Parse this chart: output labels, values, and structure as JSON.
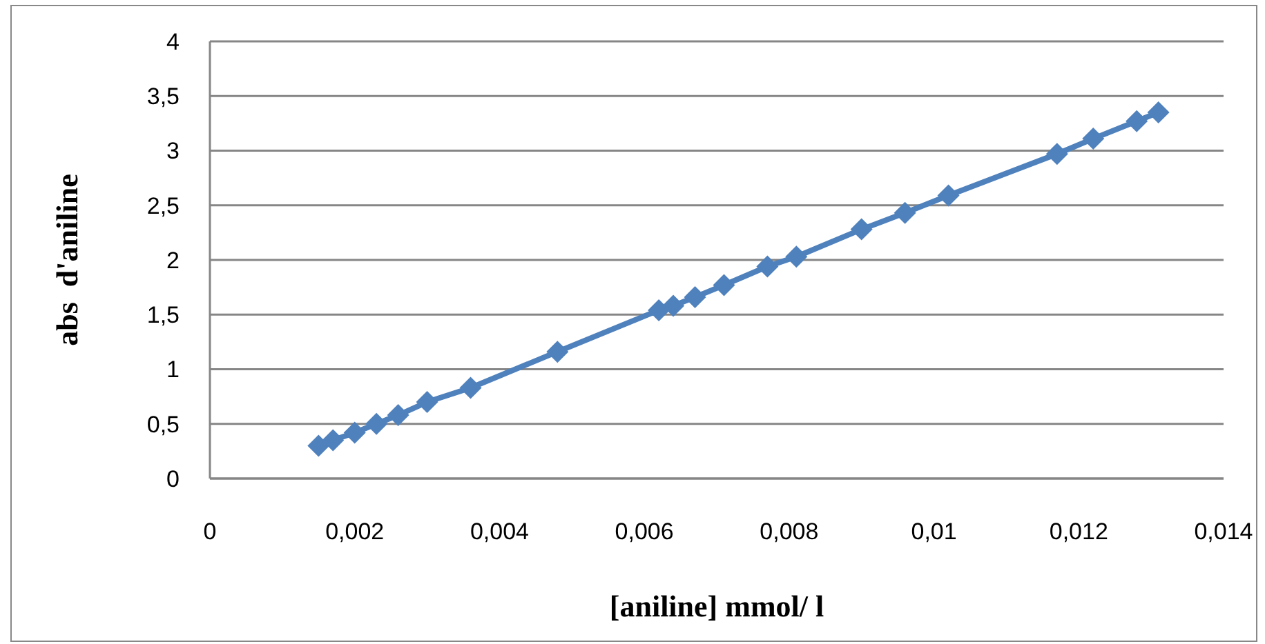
{
  "chart_data": {
    "type": "line",
    "xlabel": "[aniline] mmol/ l",
    "ylabel": "abs  d'aniline",
    "x": [
      0.0015,
      0.0017,
      0.002,
      0.0023,
      0.0026,
      0.003,
      0.0036,
      0.0048,
      0.0062,
      0.0064,
      0.0067,
      0.0071,
      0.0077,
      0.0081,
      0.009,
      0.0096,
      0.0102,
      0.0117,
      0.0122,
      0.0128,
      0.0131
    ],
    "series": [
      {
        "color": "#4f81bd",
        "values": [
          0.3,
          0.35,
          0.42,
          0.5,
          0.58,
          0.7,
          0.83,
          1.16,
          1.54,
          1.58,
          1.66,
          1.77,
          1.94,
          2.03,
          2.28,
          2.43,
          2.59,
          2.97,
          3.11,
          3.27,
          3.35
        ]
      }
    ],
    "xlim": [
      0,
      0.014
    ],
    "xticks": [
      0,
      {
        "value": 0.002,
        "label": "0,002"
      },
      {
        "value": 0.004,
        "label": "0,004"
      },
      {
        "value": 0.006,
        "label": "0,006"
      },
      {
        "value": 0.008,
        "label": "0,008"
      },
      {
        "value": 0.01,
        "label": "0,01"
      },
      {
        "value": 0.012,
        "label": "0,012"
      },
      {
        "value": 0.014,
        "label": "0,014"
      }
    ],
    "ylim": [
      0,
      4
    ],
    "yticks": [
      0,
      {
        "value": 0.5,
        "label": "0,5"
      },
      1,
      {
        "value": 1.5,
        "label": "1,5"
      },
      2,
      {
        "value": 2.5,
        "label": "2,5"
      },
      3,
      {
        "value": 3.5,
        "label": "3,5"
      },
      4
    ],
    "grid": "y",
    "marker": "diamond",
    "line_style": "solid"
  }
}
